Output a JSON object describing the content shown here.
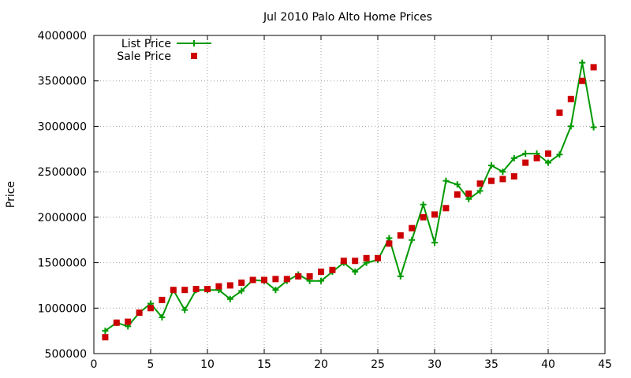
{
  "chart_data": {
    "type": "line",
    "title": "Jul 2010 Palo Alto Home Prices",
    "xlabel": "",
    "ylabel": "Price",
    "xlim": [
      0,
      45
    ],
    "ylim": [
      500000,
      4000000
    ],
    "xticks": [
      0,
      5,
      10,
      15,
      20,
      25,
      30,
      35,
      40,
      45
    ],
    "yticks": [
      500000,
      1000000,
      1500000,
      2000000,
      2500000,
      3000000,
      3500000,
      4000000
    ],
    "grid": true,
    "legend_position": "top-left",
    "series": [
      {
        "name": "List Price",
        "style": "line+cross",
        "color": "#009900",
        "x": [
          1,
          2,
          3,
          4,
          5,
          6,
          7,
          8,
          9,
          10,
          11,
          12,
          13,
          14,
          15,
          16,
          17,
          18,
          19,
          20,
          21,
          22,
          23,
          24,
          25,
          26,
          27,
          28,
          29,
          30,
          31,
          32,
          33,
          34,
          35,
          36,
          37,
          38,
          39,
          40,
          41,
          42,
          43,
          44
        ],
        "y": [
          750000,
          840000,
          800000,
          950000,
          1050000,
          900000,
          1200000,
          980000,
          1200000,
          1200000,
          1200000,
          1100000,
          1190000,
          1310000,
          1300000,
          1200000,
          1300000,
          1370000,
          1300000,
          1300000,
          1400000,
          1500000,
          1400000,
          1500000,
          1530000,
          1770000,
          1350000,
          1750000,
          2140000,
          1720000,
          2400000,
          2360000,
          2200000,
          2290000,
          2570000,
          2500000,
          2650000,
          2700000,
          2700000,
          2600000,
          2690000,
          3000000,
          3700000,
          2990000
        ]
      },
      {
        "name": "Sale Price",
        "style": "square",
        "color": "#cc0000",
        "x": [
          1,
          2,
          3,
          4,
          5,
          6,
          7,
          8,
          9,
          10,
          11,
          12,
          13,
          14,
          15,
          16,
          17,
          18,
          19,
          20,
          21,
          22,
          23,
          24,
          25,
          26,
          27,
          28,
          29,
          30,
          31,
          32,
          33,
          34,
          35,
          36,
          37,
          38,
          39,
          40,
          41,
          42,
          43,
          44
        ],
        "y": [
          680000,
          840000,
          850000,
          950000,
          1000000,
          1090000,
          1200000,
          1200000,
          1210000,
          1210000,
          1240000,
          1250000,
          1280000,
          1310000,
          1310000,
          1320000,
          1320000,
          1350000,
          1350000,
          1400000,
          1420000,
          1520000,
          1520000,
          1550000,
          1550000,
          1710000,
          1800000,
          1880000,
          2000000,
          2030000,
          2100000,
          2250000,
          2260000,
          2370000,
          2400000,
          2420000,
          2450000,
          2600000,
          2650000,
          2700000,
          3150000,
          3300000,
          3500000,
          3650000
        ]
      }
    ]
  }
}
